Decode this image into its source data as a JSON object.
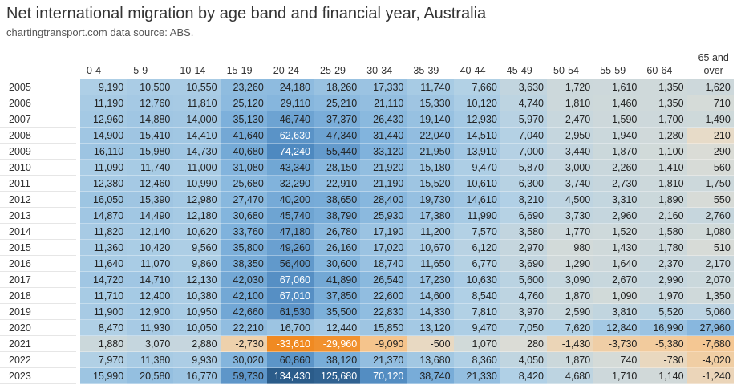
{
  "header": {
    "title": "Net international migration by age band and financial year, Australia",
    "subtitle": "chartingtransport.com  data source: ABS."
  },
  "table": {
    "columns": [
      "0-4",
      "5-9",
      "10-14",
      "15-19",
      "20-24",
      "25-29",
      "30-34",
      "35-39",
      "40-44",
      "45-49",
      "50-54",
      "55-59",
      "60-64",
      "65 and over"
    ],
    "rows": [
      [
        "2005",
        "9,190",
        "10,500",
        "10,550",
        "23,260",
        "24,180",
        "18,260",
        "17,330",
        "11,740",
        "7,660",
        "3,630",
        "1,720",
        "1,610",
        "1,350",
        "1,620"
      ],
      [
        "2006",
        "11,190",
        "12,760",
        "11,810",
        "25,120",
        "29,110",
        "25,210",
        "21,110",
        "15,330",
        "10,120",
        "4,740",
        "1,810",
        "1,460",
        "1,350",
        "710"
      ],
      [
        "2007",
        "12,960",
        "14,880",
        "14,000",
        "35,130",
        "46,740",
        "37,370",
        "26,430",
        "19,140",
        "12,930",
        "5,970",
        "2,470",
        "1,590",
        "1,700",
        "1,490"
      ],
      [
        "2008",
        "14,900",
        "15,410",
        "14,410",
        "41,640",
        "62,630",
        "47,340",
        "31,440",
        "22,040",
        "14,510",
        "7,040",
        "2,950",
        "1,940",
        "1,280",
        "-210"
      ],
      [
        "2009",
        "16,110",
        "15,980",
        "14,730",
        "40,680",
        "74,240",
        "55,440",
        "33,120",
        "21,950",
        "13,910",
        "7,000",
        "3,440",
        "1,870",
        "1,100",
        "290"
      ],
      [
        "2010",
        "11,090",
        "11,740",
        "11,000",
        "31,080",
        "43,340",
        "28,150",
        "21,920",
        "15,180",
        "9,470",
        "5,870",
        "3,000",
        "2,260",
        "1,410",
        "560"
      ],
      [
        "2011",
        "12,380",
        "12,460",
        "10,990",
        "25,680",
        "32,290",
        "22,910",
        "21,190",
        "15,520",
        "10,610",
        "6,300",
        "3,740",
        "2,730",
        "1,810",
        "1,750"
      ],
      [
        "2012",
        "16,050",
        "15,390",
        "12,980",
        "27,470",
        "40,200",
        "38,650",
        "28,400",
        "19,730",
        "14,610",
        "8,210",
        "4,500",
        "3,310",
        "1,890",
        "550"
      ],
      [
        "2013",
        "14,870",
        "14,490",
        "12,180",
        "30,680",
        "45,740",
        "38,790",
        "25,930",
        "17,380",
        "11,990",
        "6,690",
        "3,730",
        "2,960",
        "2,160",
        "2,760"
      ],
      [
        "2014",
        "11,820",
        "12,140",
        "10,620",
        "33,760",
        "47,180",
        "26,780",
        "17,190",
        "11,200",
        "7,570",
        "3,580",
        "1,770",
        "1,520",
        "1,580",
        "1,080"
      ],
      [
        "2015",
        "11,360",
        "10,420",
        "9,560",
        "35,800",
        "49,260",
        "26,160",
        "17,020",
        "10,670",
        "6,120",
        "2,970",
        "980",
        "1,430",
        "1,780",
        "510"
      ],
      [
        "2016",
        "11,640",
        "11,070",
        "9,860",
        "38,350",
        "56,400",
        "30,600",
        "18,740",
        "11,650",
        "6,770",
        "3,690",
        "1,290",
        "1,640",
        "2,370",
        "2,170"
      ],
      [
        "2017",
        "14,720",
        "14,710",
        "12,130",
        "42,030",
        "67,060",
        "41,890",
        "26,540",
        "17,230",
        "10,630",
        "5,600",
        "3,090",
        "2,670",
        "2,990",
        "2,070"
      ],
      [
        "2018",
        "11,710",
        "12,400",
        "10,380",
        "42,100",
        "67,010",
        "37,850",
        "22,600",
        "14,600",
        "8,540",
        "4,760",
        "1,870",
        "1,090",
        "1,970",
        "1,350"
      ],
      [
        "2019",
        "11,900",
        "12,900",
        "10,950",
        "42,660",
        "61,530",
        "35,500",
        "22,830",
        "14,330",
        "7,810",
        "3,970",
        "2,590",
        "3,810",
        "5,520",
        "5,060"
      ],
      [
        "2020",
        "8,470",
        "11,930",
        "10,050",
        "22,210",
        "16,700",
        "12,440",
        "15,850",
        "13,120",
        "9,470",
        "7,050",
        "7,620",
        "12,840",
        "16,990",
        "27,960"
      ],
      [
        "2021",
        "1,880",
        "3,070",
        "2,880",
        "-2,730",
        "-33,610",
        "-29,960",
        "-9,090",
        "-500",
        "1,070",
        "280",
        "-1,430",
        "-3,730",
        "-5,380",
        "-7,680"
      ],
      [
        "2022",
        "7,970",
        "11,380",
        "9,930",
        "30,020",
        "60,860",
        "38,120",
        "21,370",
        "13,680",
        "8,360",
        "4,050",
        "1,870",
        "740",
        "-730",
        "-4,020"
      ],
      [
        "2023",
        "15,990",
        "20,580",
        "16,770",
        "59,730",
        "134,430",
        "125,680",
        "70,120",
        "38,740",
        "21,330",
        "8,420",
        "4,680",
        "1,710",
        "1,140",
        "-1,240"
      ]
    ]
  }
}
